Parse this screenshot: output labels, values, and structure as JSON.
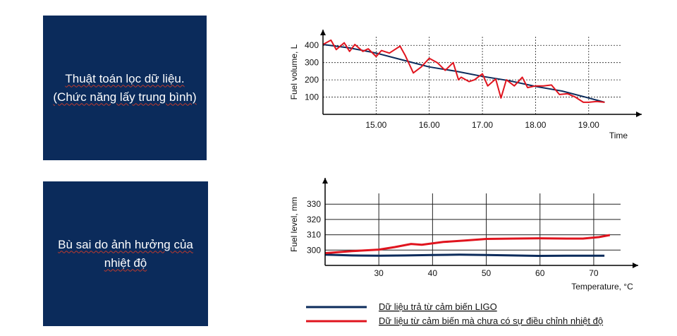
{
  "boxes": {
    "box1": {
      "line1": "Thuật toán lọc dữ liệu.",
      "line2": "(Chức năng lấy trung bình)"
    },
    "box2": {
      "line1": "Bù sai do ảnh hưởng của",
      "line2": "nhiệt độ"
    }
  },
  "legend": {
    "items": [
      {
        "label": "Dữ liệu trả từ cảm biến LIGO",
        "color": "#0b2b5b"
      },
      {
        "label": "Dữ liệu từ cảm biến mà chưa có sự điều chỉnh nhiệt độ",
        "color": "#e0141e"
      }
    ]
  },
  "chart_data": [
    {
      "type": "line",
      "title": "",
      "xlabel": "Time",
      "ylabel": "Fuel volume, L",
      "x_ticks": [
        "15.00",
        "16.00",
        "17.00",
        "18.00",
        "19.00"
      ],
      "y_ticks": [
        100,
        200,
        300,
        400
      ],
      "xlim": [
        14.0,
        19.6
      ],
      "ylim": [
        0,
        450
      ],
      "grid": true,
      "series": [
        {
          "color": "#0b2b5b",
          "x": [
            14.0,
            14.5,
            15.0,
            15.5,
            16.0,
            16.5,
            17.0,
            17.5,
            18.0,
            18.5,
            19.0,
            19.3
          ],
          "y": [
            405,
            385,
            355,
            315,
            275,
            250,
            220,
            195,
            162,
            135,
            95,
            70
          ]
        },
        {
          "color": "#e0141e",
          "x": [
            14.0,
            14.15,
            14.25,
            14.4,
            14.5,
            14.6,
            14.75,
            14.85,
            15.0,
            15.1,
            15.25,
            15.35,
            15.45,
            15.55,
            15.7,
            15.85,
            16.0,
            16.15,
            16.3,
            16.45,
            16.55,
            16.6,
            16.75,
            16.85,
            17.0,
            17.1,
            17.25,
            17.35,
            17.45,
            17.6,
            17.75,
            17.85,
            18.0,
            18.15,
            18.3,
            18.45,
            18.6,
            18.75,
            18.9,
            19.0,
            19.15,
            19.3
          ],
          "y": [
            405,
            430,
            375,
            415,
            365,
            405,
            365,
            380,
            335,
            370,
            355,
            375,
            395,
            340,
            240,
            275,
            325,
            300,
            255,
            300,
            200,
            215,
            190,
            200,
            235,
            165,
            205,
            95,
            200,
            165,
            215,
            155,
            165,
            165,
            170,
            115,
            120,
            100,
            70,
            70,
            75,
            70
          ]
        }
      ]
    },
    {
      "type": "line",
      "title": "",
      "xlabel": "Temperature, °C",
      "ylabel": "Fuel level, mm",
      "x_ticks": [
        30,
        40,
        50,
        60,
        70
      ],
      "y_ticks": [
        300,
        310,
        320,
        330
      ],
      "xlim": [
        20,
        75
      ],
      "ylim": [
        290,
        337
      ],
      "grid": true,
      "series": [
        {
          "color": "#0b2b5b",
          "x": [
            20,
            25,
            30,
            35,
            40,
            45,
            50,
            55,
            60,
            65,
            70,
            72
          ],
          "y": [
            297,
            296.5,
            296.3,
            296.5,
            296.8,
            297,
            296.8,
            296.5,
            296.2,
            296.3,
            296.3,
            296.3
          ]
        },
        {
          "color": "#e0141e",
          "x": [
            20,
            25,
            30,
            33,
            36,
            38,
            42,
            46,
            50,
            55,
            60,
            65,
            68,
            71,
            73
          ],
          "y": [
            298,
            299.3,
            300.3,
            302,
            304,
            303.5,
            305.3,
            306.2,
            307.3,
            307.5,
            307.7,
            307.5,
            307.5,
            308.5,
            309.8
          ]
        }
      ]
    }
  ]
}
